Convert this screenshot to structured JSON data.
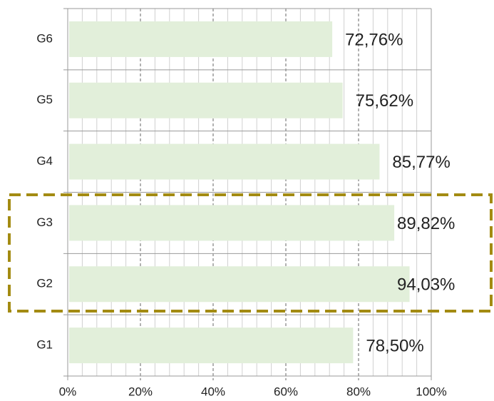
{
  "chart_data": {
    "type": "hbar",
    "categories": [
      "G6",
      "G5",
      "G4",
      "G3",
      "G2",
      "G1"
    ],
    "values": [
      72.76,
      75.62,
      85.77,
      89.82,
      94.03,
      78.5
    ],
    "value_labels": [
      "72,76%",
      "75,62%",
      "85,77%",
      "89,82%",
      "94,03%",
      "78,50%"
    ],
    "color": "#e2efda",
    "xlim": [
      0,
      100
    ],
    "xticks": [
      {
        "value": 0,
        "label": "0%"
      },
      {
        "value": 20,
        "label": "20%"
      },
      {
        "value": 40,
        "label": "40%"
      },
      {
        "value": 60,
        "label": "60%"
      },
      {
        "value": 80,
        "label": "80%"
      },
      {
        "value": 100,
        "label": "100%"
      }
    ],
    "xminorticks": [
      4,
      8,
      12,
      16,
      24,
      28,
      32,
      36,
      44,
      48,
      52,
      56,
      64,
      68,
      72,
      76,
      84,
      88,
      92,
      96
    ],
    "grid": true
  }
}
